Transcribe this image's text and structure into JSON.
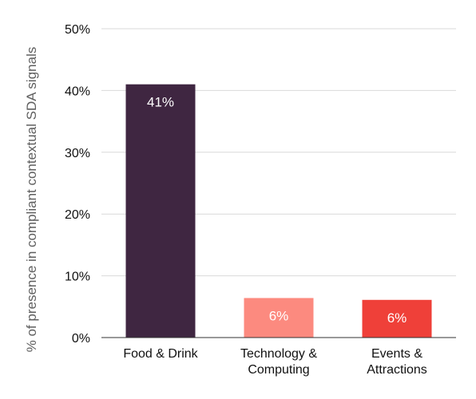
{
  "chart_data": {
    "type": "bar",
    "title": "",
    "xlabel": "",
    "ylabel": "% of presence in compliant contextual SDA signals",
    "ylim": [
      0,
      50
    ],
    "yticks": [
      {
        "value": 0,
        "label": "0%"
      },
      {
        "value": 10,
        "label": "10%"
      },
      {
        "value": 20,
        "label": "20%"
      },
      {
        "value": 30,
        "label": "30%"
      },
      {
        "value": 40,
        "label": "40%"
      },
      {
        "value": 50,
        "label": "50%"
      }
    ],
    "categories": [
      [
        "Food & Drink"
      ],
      [
        "Technology &",
        "Computing"
      ],
      [
        "Events &",
        "Attractions"
      ]
    ],
    "values": [
      41,
      6.4,
      6.1
    ],
    "data_labels": [
      "41%",
      "6%",
      "6%"
    ],
    "colors": [
      "#3f2641",
      "#fc8a7f",
      "#ef4039"
    ],
    "grid": true,
    "legend": "none"
  }
}
